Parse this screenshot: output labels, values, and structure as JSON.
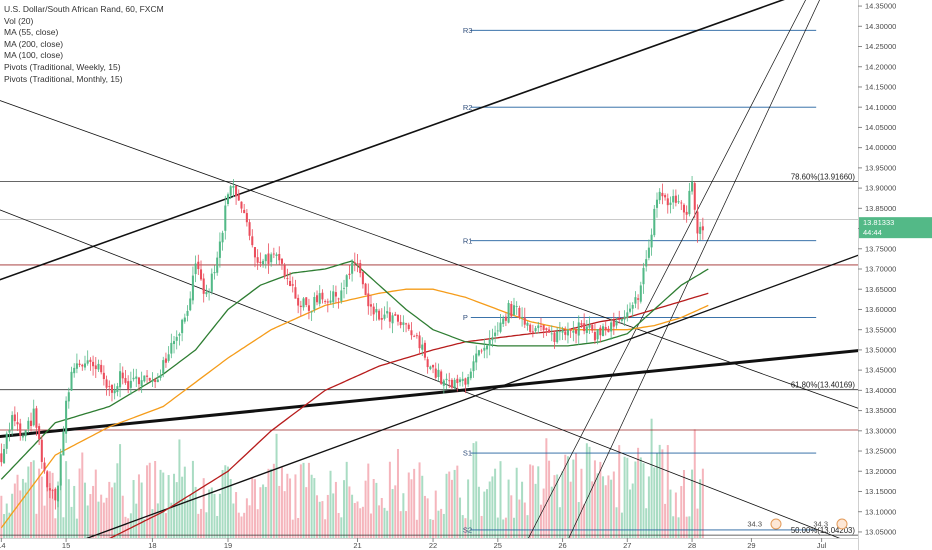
{
  "legend": {
    "title": "U.S. Dollar/South African Rand, 60, FXCM",
    "items": [
      "Vol (20)",
      "MA (55, close)",
      "MA (200, close)",
      "MA (100, close)",
      "Pivots (Traditional, Weekly, 15)",
      "Pivots (Traditional, Monthly, 15)"
    ]
  },
  "colors": {
    "up": "#53b987",
    "down": "#eb4d5c",
    "ma55": "#2e7d32",
    "ma200": "#b71c1c",
    "ma100": "#f59c1a",
    "pivot": "#1f5f9e",
    "trend": "#111111",
    "volume_up": "#a9dcc3",
    "volume_down": "#f5b5bc"
  },
  "chart_data": {
    "type": "candlestick",
    "symbol": "USDZAR",
    "interval": "60",
    "y_ticks": [
      "14.35000",
      "14.30000",
      "14.25000",
      "14.20000",
      "14.15000",
      "14.10000",
      "14.05000",
      "14.00000",
      "13.95000",
      "13.90000",
      "13.85000",
      "13.80000",
      "13.75000",
      "13.70000",
      "13.65000",
      "13.60000",
      "13.55000",
      "13.50000",
      "13.45000",
      "13.40000",
      "13.35000",
      "13.30000",
      "13.25000",
      "13.20000",
      "13.15000",
      "13.10000",
      "13.05000"
    ],
    "ylim": [
      13.035,
      14.365
    ],
    "x_ticks": [
      "14",
      "15",
      "18",
      "19",
      "21",
      "22",
      "25",
      "26",
      "27",
      "28",
      "29",
      "Jul"
    ],
    "x_tick_index": [
      0,
      24,
      56,
      84,
      132,
      160,
      184,
      208,
      232,
      256,
      278,
      304
    ],
    "x_count": 318,
    "last_price": "13.81333",
    "countdown": "44:44",
    "pivots": [
      {
        "label": "R3",
        "value": 14.29,
        "from_index": 174,
        "to_index": 302
      },
      {
        "label": "R2",
        "value": 14.1,
        "from_index": 174,
        "to_index": 302
      },
      {
        "label": "R1",
        "value": 13.77,
        "from_index": 174,
        "to_index": 302
      },
      {
        "label": "P",
        "value": 13.58,
        "from_index": 174,
        "to_index": 302
      },
      {
        "label": "S1",
        "value": 13.245,
        "from_index": 174,
        "to_index": 302
      },
      {
        "label": "S2",
        "value": 13.055,
        "from_index": 174,
        "to_index": 302
      }
    ],
    "fib_levels": [
      {
        "label": "78.60%(13.91660)",
        "value": 13.9166
      },
      {
        "label": "61.80%(13.40169)",
        "value": 13.40169
      },
      {
        "label": "50.00%(13.04203)",
        "value": 13.04203
      }
    ],
    "h_levels": [
      {
        "value": 13.71,
        "color": "#9c2727"
      },
      {
        "value": 13.302,
        "color": "#9c2727"
      },
      {
        "value": 13.822,
        "color": "#b9b9b9"
      }
    ],
    "markers": [
      "34.3",
      "34.3"
    ],
    "trendlines": [
      {
        "x1": -2,
        "y1": 13.67,
        "x2": 300,
        "y2": 14.39,
        "width": 1.6
      },
      {
        "x1": -2,
        "y1": 13.285,
        "x2": 320,
        "y2": 13.5,
        "width": 3
      },
      {
        "x1": 30,
        "y1": 13.03,
        "x2": 320,
        "y2": 13.74,
        "width": 1.3
      },
      {
        "x1": -2,
        "y1": 14.12,
        "x2": 320,
        "y2": 13.35,
        "width": 0.8
      },
      {
        "x1": -2,
        "y1": 13.85,
        "x2": 320,
        "y2": 13.01,
        "width": 0.8
      },
      {
        "x1": 195,
        "y1": 13.03,
        "x2": 300,
        "y2": 14.39,
        "width": 0.7
      },
      {
        "x1": 210,
        "y1": 13.03,
        "x2": 305,
        "y2": 14.39,
        "width": 0.7
      }
    ],
    "price_keys": [
      [
        0,
        13.24
      ],
      [
        4,
        13.33
      ],
      [
        8,
        13.28
      ],
      [
        12,
        13.34
      ],
      [
        16,
        13.19
      ],
      [
        20,
        13.12
      ],
      [
        24,
        13.36
      ],
      [
        26,
        13.44
      ],
      [
        28,
        13.47
      ],
      [
        32,
        13.46
      ],
      [
        36,
        13.45
      ],
      [
        40,
        13.4
      ],
      [
        44,
        13.43
      ],
      [
        48,
        13.41
      ],
      [
        52,
        13.44
      ],
      [
        56,
        13.41
      ],
      [
        60,
        13.47
      ],
      [
        64,
        13.53
      ],
      [
        68,
        13.58
      ],
      [
        72,
        13.7
      ],
      [
        76,
        13.63
      ],
      [
        80,
        13.72
      ],
      [
        84,
        13.88
      ],
      [
        86,
        13.9
      ],
      [
        88,
        13.86
      ],
      [
        90,
        13.84
      ],
      [
        92,
        13.78
      ],
      [
        94,
        13.72
      ],
      [
        98,
        13.73
      ],
      [
        102,
        13.72
      ],
      [
        106,
        13.69
      ],
      [
        110,
        13.62
      ],
      [
        114,
        13.6
      ],
      [
        118,
        13.64
      ],
      [
        122,
        13.62
      ],
      [
        126,
        13.65
      ],
      [
        130,
        13.7
      ],
      [
        132,
        13.72
      ],
      [
        134,
        13.66
      ],
      [
        136,
        13.6
      ],
      [
        140,
        13.58
      ],
      [
        144,
        13.58
      ],
      [
        148,
        13.56
      ],
      [
        152,
        13.54
      ],
      [
        156,
        13.5
      ],
      [
        160,
        13.45
      ],
      [
        164,
        13.42
      ],
      [
        168,
        13.41
      ],
      [
        172,
        13.43
      ],
      [
        176,
        13.48
      ],
      [
        180,
        13.5
      ],
      [
        184,
        13.54
      ],
      [
        188,
        13.6
      ],
      [
        192,
        13.59
      ],
      [
        196,
        13.56
      ],
      [
        200,
        13.55
      ],
      [
        204,
        13.53
      ],
      [
        208,
        13.55
      ],
      [
        212,
        13.56
      ],
      [
        216,
        13.55
      ],
      [
        220,
        13.54
      ],
      [
        224,
        13.55
      ],
      [
        228,
        13.56
      ],
      [
        232,
        13.58
      ],
      [
        234,
        13.6
      ],
      [
        236,
        13.64
      ],
      [
        238,
        13.7
      ],
      [
        240,
        13.74
      ],
      [
        242,
        13.85
      ],
      [
        244,
        13.89
      ],
      [
        246,
        13.87
      ],
      [
        248,
        13.86
      ],
      [
        250,
        13.87
      ],
      [
        252,
        13.86
      ],
      [
        254,
        13.84
      ],
      [
        256,
        13.92
      ],
      [
        257,
        13.85
      ],
      [
        258,
        13.8
      ],
      [
        260,
        13.81
      ]
    ],
    "ma55_keys": [
      [
        0,
        13.18
      ],
      [
        20,
        13.32
      ],
      [
        40,
        13.36
      ],
      [
        60,
        13.44
      ],
      [
        72,
        13.5
      ],
      [
        84,
        13.6
      ],
      [
        96,
        13.66
      ],
      [
        108,
        13.69
      ],
      [
        120,
        13.7
      ],
      [
        130,
        13.72
      ],
      [
        140,
        13.66
      ],
      [
        150,
        13.6
      ],
      [
        160,
        13.55
      ],
      [
        172,
        13.52
      ],
      [
        184,
        13.51
      ],
      [
        196,
        13.51
      ],
      [
        210,
        13.51
      ],
      [
        222,
        13.52
      ],
      [
        232,
        13.54
      ],
      [
        242,
        13.6
      ],
      [
        252,
        13.66
      ],
      [
        262,
        13.7
      ]
    ],
    "ma100_keys": [
      [
        0,
        13.06
      ],
      [
        20,
        13.24
      ],
      [
        40,
        13.31
      ],
      [
        60,
        13.36
      ],
      [
        72,
        13.42
      ],
      [
        84,
        13.48
      ],
      [
        100,
        13.55
      ],
      [
        120,
        13.61
      ],
      [
        140,
        13.64
      ],
      [
        150,
        13.65
      ],
      [
        160,
        13.65
      ],
      [
        172,
        13.63
      ],
      [
        184,
        13.6
      ],
      [
        196,
        13.57
      ],
      [
        210,
        13.55
      ],
      [
        222,
        13.55
      ],
      [
        232,
        13.55
      ],
      [
        242,
        13.56
      ],
      [
        252,
        13.58
      ],
      [
        262,
        13.61
      ]
    ],
    "ma200_keys": [
      [
        30,
        13.0
      ],
      [
        60,
        13.1
      ],
      [
        84,
        13.2
      ],
      [
        100,
        13.3
      ],
      [
        120,
        13.4
      ],
      [
        140,
        13.46
      ],
      [
        160,
        13.5
      ],
      [
        172,
        13.52
      ],
      [
        184,
        13.53
      ],
      [
        196,
        13.54
      ],
      [
        210,
        13.55
      ],
      [
        222,
        13.57
      ],
      [
        232,
        13.58
      ],
      [
        242,
        13.6
      ],
      [
        252,
        13.62
      ],
      [
        262,
        13.64
      ]
    ]
  }
}
